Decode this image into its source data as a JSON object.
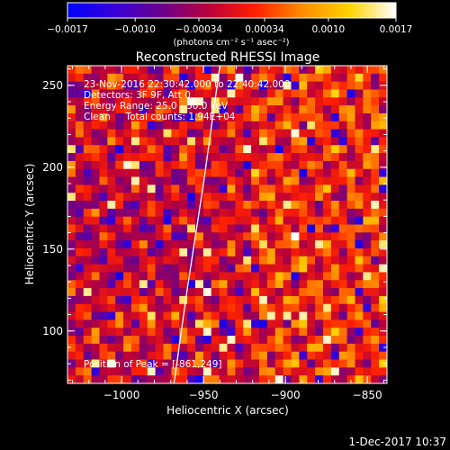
{
  "chart_data": {
    "type": "heatmap",
    "title": "Reconstructed RHESSI Image",
    "xlabel": "Heliocentric X (arcsec)",
    "ylabel": "Heliocentric Y (arcsec)",
    "xlim": [
      -1033,
      -838
    ],
    "ylim": [
      68,
      262
    ],
    "x_ticks": [
      -1000,
      -950,
      -900,
      -850
    ],
    "x_tick_labels": [
      "−1000",
      "−950",
      "−900",
      "−850"
    ],
    "y_ticks": [
      100,
      150,
      200,
      250
    ],
    "y_tick_labels": [
      "100",
      "150",
      "200",
      "250"
    ],
    "colorbar": {
      "range": [
        -0.0017,
        0.0017
      ],
      "ticks": [
        -0.0017,
        -0.001,
        -0.00034,
        0.00034,
        0.001,
        0.0017
      ],
      "tick_labels": [
        "−0.0017",
        "−0.0010",
        "−0.00034",
        "0.00034",
        "0.0010",
        "0.0017"
      ],
      "unit_label": "(photons cm⁻² s⁻¹ asec⁻²)",
      "colors": [
        "#0000ff",
        "#3800d8",
        "#6a008c",
        "#b8003c",
        "#ff2000",
        "#ff8c00",
        "#ffd200",
        "#ffffff"
      ]
    },
    "grid": {
      "columns": 40,
      "rows": 40
    },
    "limb_curve": [
      [
        -968,
        68
      ],
      [
        -960,
        125
      ],
      [
        -950,
        190
      ],
      [
        -940,
        262
      ]
    ],
    "annotations": [
      "23-Nov-2016 22:30:42.000 to 22:40:42.000",
      "Detectors: 3F 9F, Att 0",
      "Energy Range: 25.0 - 50.0 keV",
      "Clean     Total counts: 1.94E+04",
      "Position of Peak = [-861,249]"
    ],
    "peak": [
      -861,
      249
    ]
  },
  "footer": {
    "date": "1-Dec-2017 10:37"
  }
}
